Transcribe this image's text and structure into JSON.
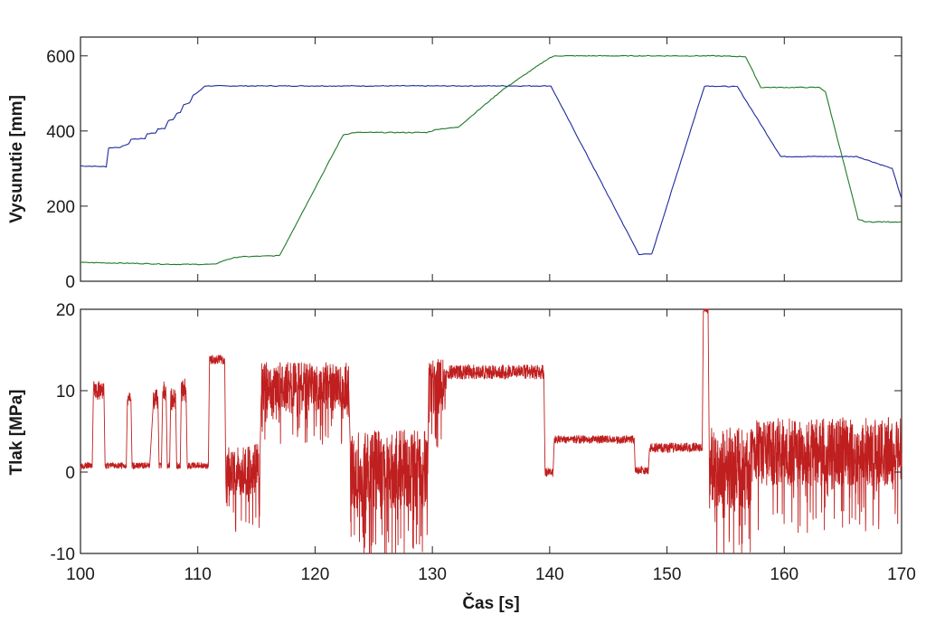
{
  "chart_data": [
    {
      "type": "line",
      "ylabel": "Vysunutie [mm]",
      "xlabel": "",
      "xlim": [
        100,
        170
      ],
      "ylim": [
        0,
        650
      ],
      "yticks": [
        "0",
        "200",
        "400",
        "600"
      ],
      "ytick_values": [
        0,
        200,
        400,
        600
      ],
      "grid": false,
      "series": [
        {
          "color": "#1e2a9c",
          "x": [
            100,
            102.2,
            102.4,
            103.5,
            103.7,
            104.1,
            104.3,
            105.5,
            105.7,
            106.4,
            106.6,
            107.2,
            107.5,
            107.9,
            108.2,
            108.5,
            108.8,
            109.3,
            109.6,
            110.1,
            110.6,
            140.1,
            147.6,
            148.7,
            153.2,
            156.0,
            159.7,
            166.2,
            169.2,
            170
          ],
          "y": [
            307,
            305,
            355,
            357,
            362,
            365,
            378,
            380,
            393,
            395,
            405,
            407,
            428,
            430,
            447,
            450,
            470,
            474,
            495,
            505,
            520,
            520,
            72,
            72,
            520,
            518,
            332,
            332,
            300,
            220
          ]
        },
        {
          "color": "#1f7a2a",
          "x": [
            100,
            104,
            108,
            111.4,
            112.5,
            113.5,
            116.8,
            117.0,
            122.4,
            123.4,
            129.5,
            130.5,
            132.2,
            136.0,
            140.0,
            140.5,
            146,
            154,
            156.7,
            158.0,
            163.0,
            163.5,
            166.3,
            167.0,
            170
          ],
          "y": [
            50,
            48,
            45,
            45,
            58,
            65,
            68,
            70,
            390,
            396,
            396,
            405,
            410,
            510,
            595,
            600,
            600,
            600,
            598,
            516,
            516,
            505,
            165,
            158,
            158
          ]
        }
      ]
    },
    {
      "type": "line",
      "ylabel": "Tlak [MPa]",
      "xlabel": "Čas [s]",
      "xlim": [
        100,
        170
      ],
      "ylim": [
        -10,
        20
      ],
      "xticks": [
        "100",
        "110",
        "120",
        "130",
        "140",
        "150",
        "160",
        "170"
      ],
      "xtick_values": [
        100,
        110,
        120,
        130,
        140,
        150,
        160,
        170
      ],
      "yticks": [
        "-10",
        "0",
        "10",
        "20"
      ],
      "ytick_values": [
        -10,
        0,
        10,
        20
      ],
      "grid": false,
      "series": [
        {
          "color": "#c01f1f",
          "segments": [
            {
              "x": [
                100,
                101.0
              ],
              "base": 0.8,
              "noise": 0.4
            },
            {
              "x": [
                101.1,
                102.0
              ],
              "base": 10,
              "noise": 1.2
            },
            {
              "x": [
                102.1,
                103.9
              ],
              "base": 0.8,
              "noise": 0.4
            },
            {
              "x": [
                104.0,
                104.3
              ],
              "base": 9,
              "noise": 0.8
            },
            {
              "x": [
                104.4,
                105.9
              ],
              "base": 0.8,
              "noise": 0.4
            },
            {
              "x": [
                106.2,
                106.6
              ],
              "base": 9,
              "noise": 1.2
            },
            {
              "x": [
                106.7,
                106.9
              ],
              "base": 0.8,
              "noise": 0.4
            },
            {
              "x": [
                107.0,
                107.3
              ],
              "base": 10,
              "noise": 1.2
            },
            {
              "x": [
                107.4,
                107.6
              ],
              "base": 0.8,
              "noise": 0.4
            },
            {
              "x": [
                107.7,
                108.1
              ],
              "base": 9,
              "noise": 1.5
            },
            {
              "x": [
                108.2,
                108.5
              ],
              "base": 0.8,
              "noise": 0.4
            },
            {
              "x": [
                108.6,
                109.0
              ],
              "base": 10,
              "noise": 1.5
            },
            {
              "x": [
                109.1,
                110.9
              ],
              "base": 0.8,
              "noise": 0.4
            },
            {
              "x": [
                111.0,
                112.3
              ],
              "base": 13.8,
              "noise": 0.6
            },
            {
              "x": [
                112.4,
                115.3
              ],
              "base": 0.3,
              "noise": 3.2
            },
            {
              "x": [
                115.4,
                122.9
              ],
              "base": 10.5,
              "noise": 3.0
            },
            {
              "x": [
                123.0,
                129.6
              ],
              "base": 0.2,
              "noise": 5.0
            },
            {
              "x": [
                129.7,
                131.2
              ],
              "base": 10.5,
              "noise": 3.5
            },
            {
              "x": [
                131.3,
                139.5
              ],
              "base": 12.3,
              "noise": 0.9
            },
            {
              "x": [
                139.6,
                140.3
              ],
              "base": 0,
              "noise": 0.6
            },
            {
              "x": [
                140.4,
                147.2
              ],
              "base": 4,
              "noise": 0.5
            },
            {
              "x": [
                147.3,
                148.4
              ],
              "base": 0.2,
              "noise": 0.5
            },
            {
              "x": [
                148.5,
                153.0
              ],
              "base": 3,
              "noise": 0.6
            },
            {
              "x": [
                153.1,
                153.5
              ],
              "base": 20,
              "noise": 0.5
            },
            {
              "x": [
                153.6,
                157.3
              ],
              "base": 0.5,
              "noise": 5.0
            },
            {
              "x": [
                157.4,
                170
              ],
              "base": 2.5,
              "noise": 4.2
            }
          ]
        }
      ]
    }
  ]
}
